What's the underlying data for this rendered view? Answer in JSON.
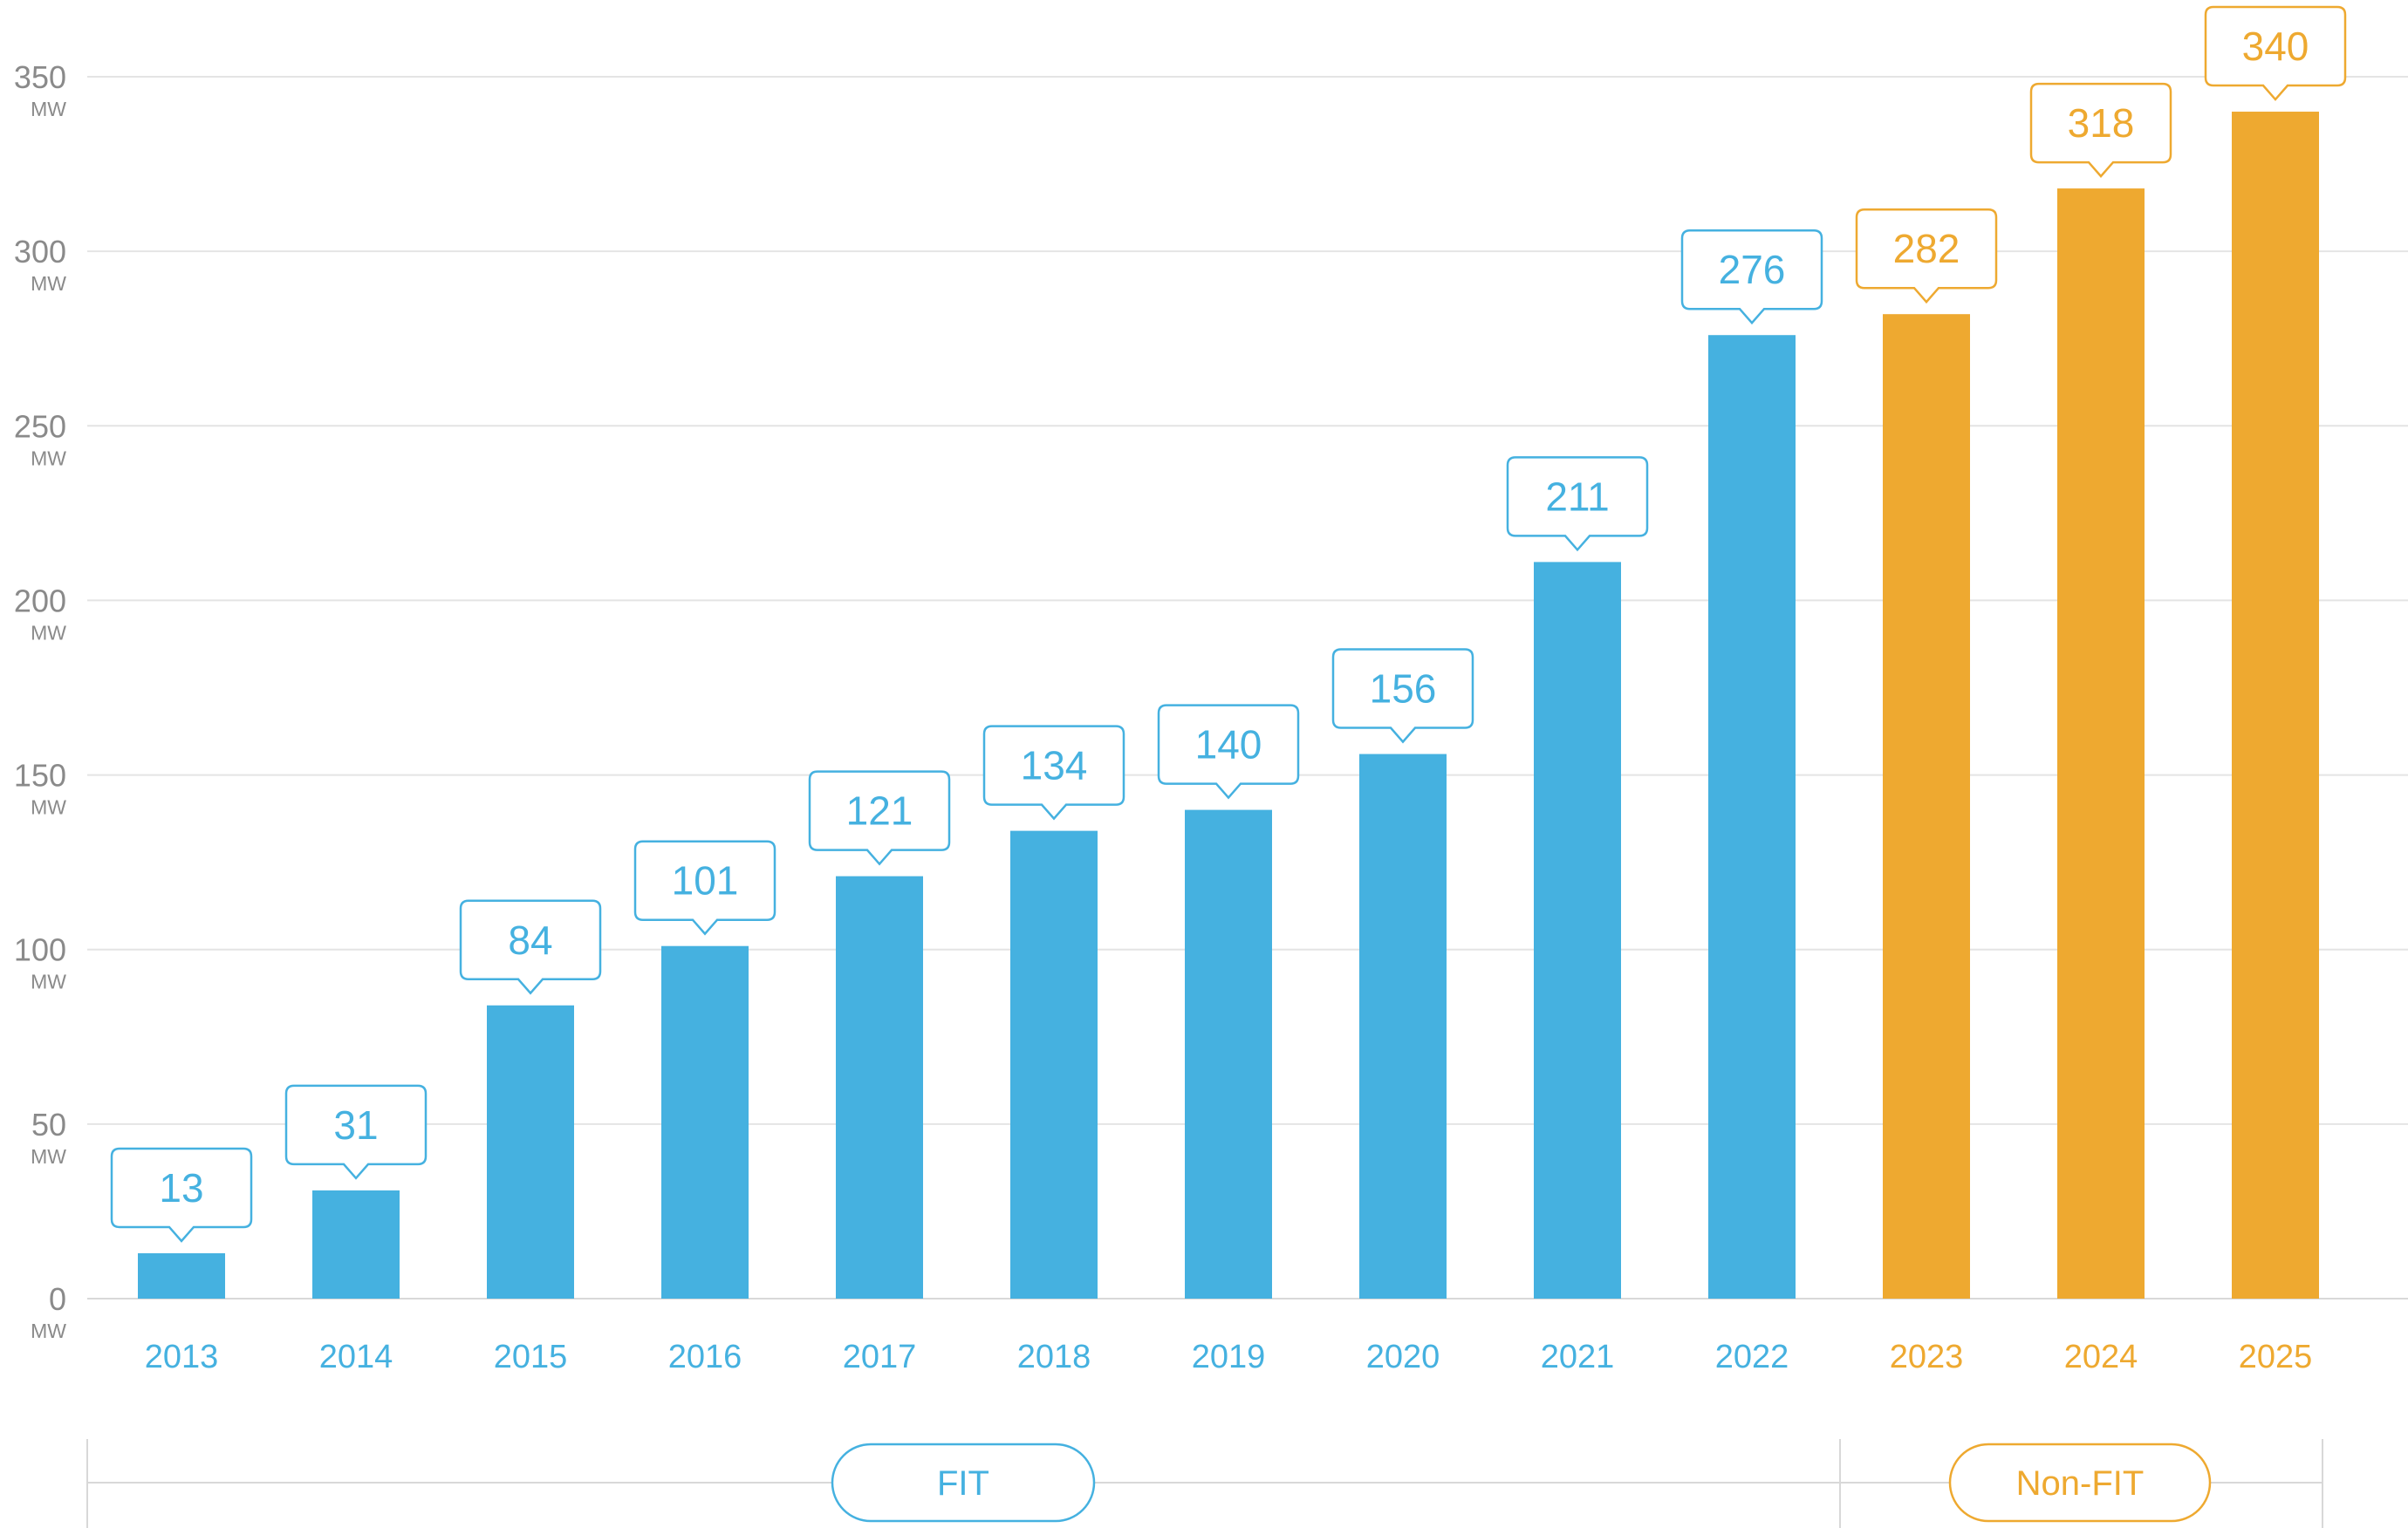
{
  "colors": {
    "fit": "#45b1e0",
    "nonfit": "#eea930",
    "grid": "#e4e4e4",
    "axis_text": "#8a8a8a",
    "baseline": "#d8d8d8"
  },
  "chart_data": {
    "type": "bar",
    "title": "",
    "xlabel": "",
    "ylabel": "",
    "unit": "MW",
    "ylim": [
      0,
      350
    ],
    "yticks": [
      0,
      50,
      100,
      150,
      200,
      250,
      300,
      350
    ],
    "grid": true,
    "categories": [
      "2013",
      "2014",
      "2015",
      "2016",
      "2017",
      "2018",
      "2019",
      "2020",
      "2021",
      "2022",
      "2023",
      "2024",
      "2025"
    ],
    "values": [
      13,
      31,
      84,
      101,
      121,
      134,
      140,
      156,
      211,
      276,
      282,
      318,
      340
    ],
    "groups": [
      "FIT",
      "FIT",
      "FIT",
      "FIT",
      "FIT",
      "FIT",
      "FIT",
      "FIT",
      "FIT",
      "FIT",
      "Non-FIT",
      "Non-FIT",
      "Non-FIT"
    ],
    "segments": [
      {
        "label": "FIT",
        "first_index": 0,
        "last_index": 9,
        "color_key": "fit"
      },
      {
        "label": "Non-FIT",
        "first_index": 10,
        "last_index": 12,
        "color_key": "nonfit"
      }
    ]
  }
}
